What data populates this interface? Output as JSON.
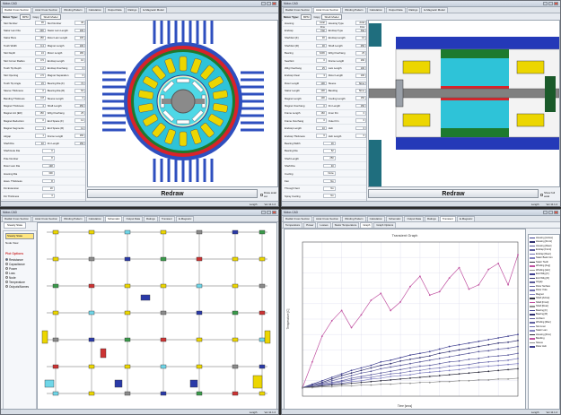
{
  "win_tl": {
    "title": "Motor-CAD",
    "tabs": [
      "Radial Cross Section",
      "Axial Cross Section",
      "Winding Pattern",
      "Calculation",
      "Output Data",
      "Ratings",
      "E-Magnetic Model"
    ],
    "motor_type_label": "Motor Type:",
    "motor_type_value": "BPM",
    "copy_label": "Copy",
    "copy_value": "Shaft Model",
    "inputs_left": [
      "Slot Number",
      "Stator Lam Dia",
      "Stator Bore",
      "Tooth Width",
      "Slot Depth",
      "Slot Corner Radius",
      "Tooth Tip Depth",
      "Slot Opening",
      "Tooth Tip Angle",
      "Sleeve Thickness",
      "Banding Thickness",
      "Magnet Thickness",
      "Magnet Arc [ED]",
      "Magnet Reduction",
      "Magnet Segments",
      "Airgap",
      "Shaft Dia",
      "Shaft Hole Dia",
      "Pole Number",
      "Rotor Lam Dia",
      "Housing Dia",
      "Hous. Thickness",
      "Fin Extension",
      "Fin Thickness",
      "Fin Pitch",
      "Number of Fins"
    ],
    "inputs_left_values": [
      "36",
      "230",
      "150",
      "9.4",
      "24",
      "0.5",
      "1.2",
      "2.5",
      "15",
      "0",
      "0.8",
      "4",
      "150",
      "0",
      "1",
      "1",
      "40",
      "0",
      "8",
      "148",
      "300",
      "8",
      "20",
      "3",
      "10",
      "60"
    ],
    "inputs_right": [
      "Slot Number",
      "Stator Lam Length",
      "Rotor Lam Length",
      "Magnet Length",
      "Motor Length",
      "Endcap Length",
      "Endcap Overhang",
      "Magnet Separation",
      "Bearing Dia (F)",
      "Bearing Dia (R)",
      "Sleeve Length",
      "Shaft Length",
      "Wdg Overhang",
      "End Space (F)",
      "End Space (R)",
      "Frame Length",
      "Fin Length"
    ],
    "inputs_right_values": [
      "36",
      "100",
      "100",
      "100",
      "180",
      "10",
      "6",
      "0",
      "72",
      "62",
      "0",
      "250",
      "25",
      "12",
      "12",
      "160",
      "150"
    ],
    "redraw_label": "Redraw",
    "check_label": "Draw axial cut",
    "status_length": "Length",
    "status_version": "Ver 11.1.2"
  },
  "win_tr": {
    "title": "Motor-CAD",
    "tabs": [
      "Radial Cross Section",
      "Axial Cross Section",
      "Winding Pattern",
      "Calculation",
      "Output Data",
      "Ratings",
      "E-Magnetic Model"
    ],
    "motor_type_label": "Motor Type:",
    "motor_type_value": "BPM",
    "copy_label": "Copy",
    "copy_value": "Shaft Model",
    "inputs_left": [
      "Housing",
      "Endcap",
      "Shaft Ext [F]",
      "Shaft Ext [R]",
      "Bearing",
      "Seal Ext",
      "Wdg Overhang",
      "Endcap Clear",
      "Rotor Length",
      "Stator Length",
      "Magnet Length",
      "Magnet Overhang",
      "Frame Length",
      "Frame Overhang",
      "Endcap Length",
      "Endcap Thickness",
      "Bearing Width",
      "Bearing Dia",
      "Shaft Length",
      "Shaft Dia",
      "Cooling",
      "Fan",
      "Through Vent",
      "Spray Cooling",
      "Wet Rotor",
      "Inlet Temp"
    ],
    "inputs_left_values": [
      "Axial Fins",
      "Flat",
      "30",
      "30",
      "6206",
      "0",
      "25",
      "3",
      "100",
      "100",
      "100",
      "0",
      "160",
      "0",
      "10",
      "6",
      "16",
      "62",
      "250",
      "40",
      "None",
      "No",
      "No",
      "No",
      "No",
      "40"
    ],
    "inputs_right": [
      "Housing Type",
      "Endcap Type",
      "Endcap Length",
      "Shaft Length",
      "Wdg Overhang",
      "Frame Length",
      "Lam Length",
      "Rotor Length",
      "Sleeve",
      "Banding",
      "Cooling Length",
      "Fin Length",
      "Inner Fin",
      "Outer Fin",
      "Hub",
      "Hub Length"
    ],
    "inputs_right_values": [
      "Axial Fins",
      "Flat",
      "10",
      "250",
      "25",
      "160",
      "100",
      "100",
      "None",
      "None",
      "150",
      "150",
      "0",
      "0",
      "0",
      "0"
    ],
    "redraw_label": "Redraw",
    "check_label": "Show full axial",
    "status_length": "Length",
    "status_version": "Ver 11.1.2"
  },
  "win_bl": {
    "title": "Motor-CAD",
    "tabs": [
      "Radial Cross Section",
      "Axial Cross Section",
      "Winding Pattern",
      "Calculation",
      "Schematic",
      "Output Data",
      "Ratings",
      "Transient",
      "E-Magnetic"
    ],
    "subtab": "Steady State",
    "dropdown_value": "Steady State",
    "node_view": "Node View",
    "plot_options_title": "Plot Options",
    "plot_options": [
      "Resistance",
      "Capacitance",
      "Power",
      "Loss",
      "Node",
      "Temperature",
      "Outputs/Names"
    ],
    "status_length": "Length",
    "status_version": "Ver 11.1.2"
  },
  "win_br": {
    "title": "Motor-CAD",
    "tabs": [
      "Radial Cross Section",
      "Axial Cross Section",
      "Winding Pattern",
      "Calculation",
      "Schematic",
      "Output Data",
      "Ratings",
      "Transient",
      "E-Magnetic"
    ],
    "subtabs": [
      "Temperature",
      "Power",
      "Losses",
      "Stator Temperature",
      "Graph",
      "Graph Options"
    ],
    "graph_title": "Transient Graph",
    "x_label": "Time [secs]",
    "y_label": "Temperature [C]",
    "legend": [
      "Housing [Active]",
      "Housing [Front]",
      "Housing [Rear]",
      "Endcap [Front]",
      "Endcap [Rear]",
      "Stator Back Iron",
      "Stator Tooth",
      "Winding [Avg]",
      "Winding [Hot]",
      "End Wdg [F]",
      "End Wdg [R]",
      "Airgap",
      "Rotor Surface",
      "Rotor Yoke",
      "Magnet",
      "Shaft [Active]",
      "Shaft [Front]",
      "Shaft [Rear]",
      "Bearing [F]",
      "Bearing [R]",
      "Ambient",
      "Winding [Max]",
      "Slot Liner",
      "Stator Lam",
      "Housing [Fins]",
      "Banding",
      "Sleeve",
      "Rotor Hub"
    ],
    "status_length": "Length",
    "status_version": "Ver 11.1.2"
  },
  "chart_data": {
    "type": "line",
    "title": "Transient Graph",
    "xlabel": "Time [secs]",
    "ylabel": "Temperature [C]",
    "x": [
      0,
      1,
      2,
      3,
      4,
      5,
      6,
      7,
      8,
      9,
      10,
      11,
      12,
      13,
      14,
      15,
      16,
      17,
      18,
      19,
      20,
      21,
      22
    ],
    "ylim": [
      0,
      180
    ],
    "grid": true,
    "legend_position": "right",
    "series": [
      {
        "name": "Winding [Hot]",
        "color": "#c050a0",
        "values": [
          10,
          40,
          70,
          88,
          100,
          80,
          95,
          112,
          120,
          100,
          110,
          128,
          140,
          118,
          122,
          138,
          150,
          125,
          130,
          148,
          155,
          130,
          165
        ]
      },
      {
        "name": "Magnet",
        "color": "#404090",
        "values": [
          10,
          14,
          18,
          22,
          26,
          30,
          33,
          36,
          40,
          42,
          45,
          48,
          50,
          52,
          55,
          58,
          60,
          62,
          64,
          66,
          68,
          70,
          72
        ]
      },
      {
        "name": "Rotor Yoke",
        "color": "#303070",
        "values": [
          10,
          13,
          16,
          20,
          24,
          27,
          30,
          33,
          36,
          38,
          41,
          43,
          45,
          47,
          50,
          52,
          54,
          56,
          58,
          60,
          62,
          63,
          65
        ]
      },
      {
        "name": "Stator Tooth",
        "color": "#5a5a9a",
        "values": [
          10,
          13,
          15,
          18,
          21,
          24,
          27,
          29,
          32,
          34,
          36,
          38,
          40,
          42,
          44,
          46,
          48,
          50,
          52,
          53,
          55,
          56,
          58
        ]
      },
      {
        "name": "Housing [Active]",
        "color": "#6060a0",
        "values": [
          10,
          12,
          14,
          16,
          18,
          21,
          23,
          25,
          27,
          29,
          31,
          33,
          35,
          36,
          38,
          40,
          41,
          43,
          44,
          46,
          47,
          48,
          50
        ]
      },
      {
        "name": "Shaft [Active]",
        "color": "#7070b0",
        "values": [
          10,
          11,
          13,
          15,
          17,
          19,
          21,
          22,
          24,
          26,
          27,
          29,
          30,
          32,
          33,
          35,
          36,
          37,
          39,
          40,
          41,
          42,
          44
        ]
      },
      {
        "name": "Endcap [Front]",
        "color": "#8080c0",
        "values": [
          10,
          11,
          12,
          14,
          15,
          17,
          18,
          20,
          21,
          23,
          24,
          25,
          27,
          28,
          29,
          30,
          31,
          33,
          34,
          35,
          36,
          37,
          38
        ]
      },
      {
        "name": "Bearing [F]",
        "color": "#303040",
        "values": [
          10,
          11,
          12,
          13,
          14,
          15,
          16,
          17,
          18,
          19,
          20,
          21,
          22,
          23,
          24,
          25,
          26,
          27,
          28,
          29,
          30,
          31,
          32
        ]
      },
      {
        "name": "Ambient",
        "color": "#909090",
        "values": [
          10,
          10,
          11,
          11,
          12,
          12,
          13,
          13,
          14,
          14,
          15,
          15,
          16,
          16,
          17,
          17,
          18,
          18,
          19,
          19,
          20,
          20,
          21
        ]
      }
    ]
  }
}
